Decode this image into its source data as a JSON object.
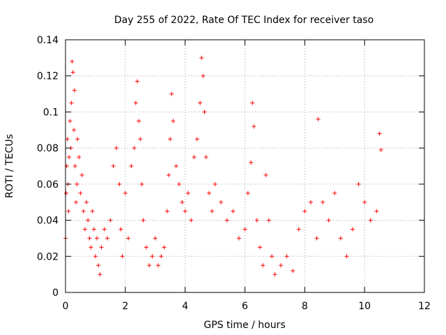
{
  "chart_data": {
    "type": "scatter",
    "title": "Day 255 of 2022, Rate Of TEC Index for receiver taso",
    "xlabel": "GPS time / hours",
    "ylabel": "ROTI / TECUs",
    "xlim": [
      0,
      12
    ],
    "ylim": [
      0,
      0.14
    ],
    "x_ticks": [
      "0",
      "2",
      "4",
      "6",
      "8",
      "10",
      "12"
    ],
    "y_ticks": [
      "0",
      "0.02",
      "0.04",
      "0.06",
      "0.08",
      "0.1",
      "0.12",
      "0.14"
    ],
    "grid": true,
    "marker": "plus",
    "color": "#ff0000",
    "series": [
      {
        "x": [
          0.0,
          0.02,
          0.04,
          0.06,
          0.08,
          0.1,
          0.12,
          0.15,
          0.18,
          0.2,
          0.22,
          0.25,
          0.28,
          0.3,
          0.32,
          0.35,
          0.38,
          0.4,
          0.45,
          0.5,
          0.55,
          0.6,
          0.65,
          0.7,
          0.75,
          0.8,
          0.85,
          0.9,
          0.95,
          1.0,
          1.05,
          1.1,
          1.15,
          1.2,
          1.3,
          1.4,
          1.5,
          1.6,
          1.7,
          1.8,
          1.85,
          1.9,
          2.0,
          2.1,
          2.2,
          2.3,
          2.35,
          2.4,
          2.45,
          2.5,
          2.55,
          2.6,
          2.7,
          2.8,
          2.9,
          3.0,
          3.1,
          3.2,
          3.3,
          3.4,
          3.45,
          3.5,
          3.55,
          3.6,
          3.7,
          3.8,
          3.9,
          4.0,
          4.1,
          4.2,
          4.3,
          4.4,
          4.5,
          4.55,
          4.6,
          4.65,
          4.7,
          4.8,
          4.9,
          5.0,
          5.2,
          5.4,
          5.6,
          5.8,
          6.0,
          6.1,
          6.2,
          6.25,
          6.3,
          6.4,
          6.5,
          6.6,
          6.7,
          6.8,
          6.9,
          7.0,
          7.2,
          7.4,
          7.6,
          7.8,
          8.0,
          8.2,
          8.4,
          8.45,
          8.6,
          8.8,
          9.0,
          9.2,
          9.4,
          9.6,
          9.8,
          10.0,
          10.2,
          10.4,
          10.5,
          10.55
        ],
        "y": [
          0.03,
          0.055,
          0.07,
          0.085,
          0.06,
          0.045,
          0.075,
          0.095,
          0.08,
          0.105,
          0.128,
          0.122,
          0.09,
          0.112,
          0.07,
          0.05,
          0.06,
          0.085,
          0.075,
          0.055,
          0.065,
          0.045,
          0.035,
          0.05,
          0.04,
          0.03,
          0.025,
          0.045,
          0.035,
          0.02,
          0.03,
          0.015,
          0.01,
          0.025,
          0.035,
          0.03,
          0.04,
          0.07,
          0.08,
          0.06,
          0.035,
          0.02,
          0.055,
          0.03,
          0.07,
          0.08,
          0.105,
          0.117,
          0.095,
          0.085,
          0.06,
          0.04,
          0.025,
          0.015,
          0.02,
          0.03,
          0.015,
          0.02,
          0.025,
          0.045,
          0.065,
          0.085,
          0.11,
          0.095,
          0.07,
          0.06,
          0.05,
          0.045,
          0.055,
          0.04,
          0.075,
          0.085,
          0.105,
          0.13,
          0.12,
          0.1,
          0.075,
          0.055,
          0.045,
          0.06,
          0.05,
          0.04,
          0.045,
          0.03,
          0.035,
          0.055,
          0.072,
          0.105,
          0.092,
          0.04,
          0.025,
          0.015,
          0.065,
          0.04,
          0.02,
          0.01,
          0.015,
          0.02,
          0.012,
          0.035,
          0.045,
          0.05,
          0.03,
          0.096,
          0.05,
          0.04,
          0.055,
          0.03,
          0.02,
          0.035,
          0.06,
          0.05,
          0.04,
          0.045,
          0.088,
          0.079
        ]
      }
    ]
  }
}
